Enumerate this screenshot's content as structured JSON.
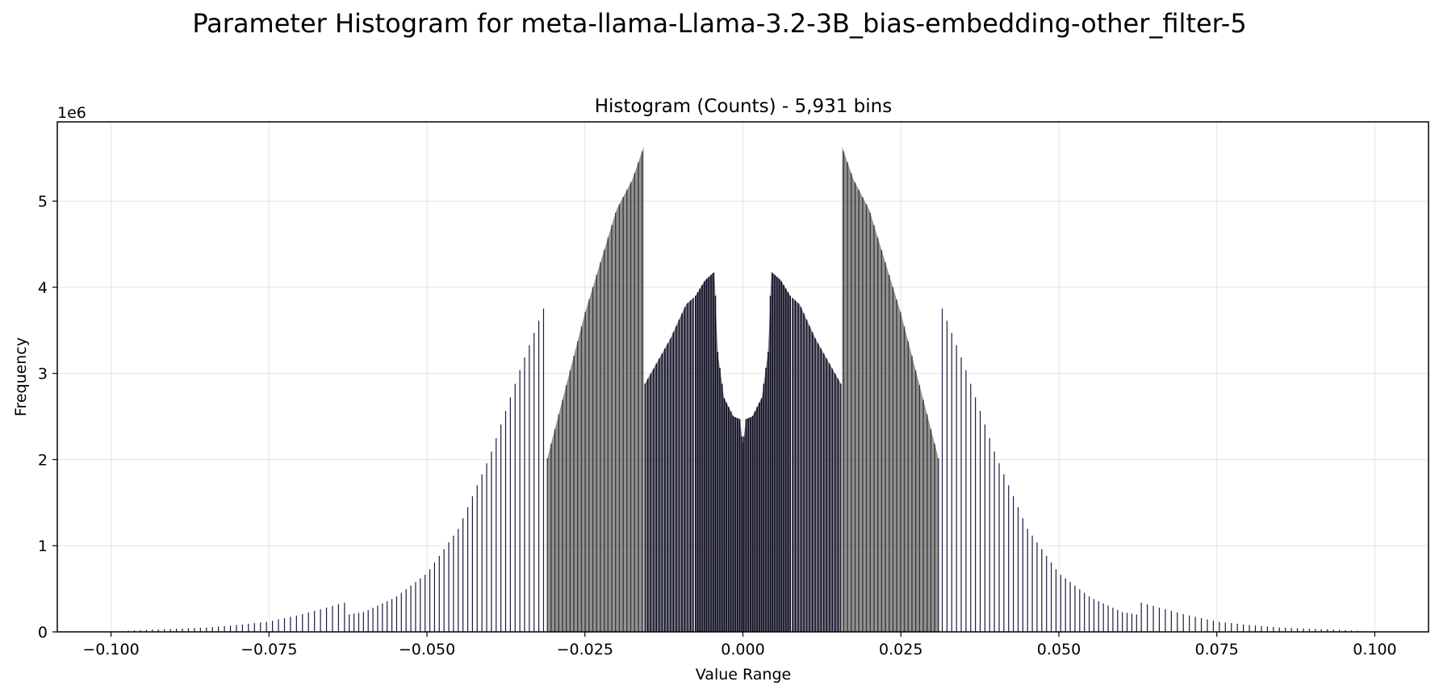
{
  "chart_data": {
    "type": "bar",
    "title": "Parameter Histogram for meta-llama-Llama-3.2-3B_bias-embedding-other_filter-5",
    "subtitle": "Histogram (Counts) - 5,931 bins",
    "xlabel": "Value Range",
    "ylabel": "Frequency",
    "y_offset_label": "1e6",
    "y_multiplier": 1000000,
    "xlim": [
      -0.1085,
      0.1085
    ],
    "ylim": [
      0,
      5.92
    ],
    "grid": true,
    "xticks": [
      -0.1,
      -0.075,
      -0.05,
      -0.025,
      0.0,
      0.025,
      0.05,
      0.075,
      0.1
    ],
    "xtick_labels": [
      "−0.100",
      "−0.075",
      "−0.050",
      "−0.025",
      "0.000",
      "0.025",
      "0.050",
      "0.075",
      "0.100"
    ],
    "yticks": [
      0,
      1,
      2,
      3,
      4,
      5
    ],
    "ytick_labels": [
      "0",
      "1",
      "2",
      "3",
      "4",
      "5"
    ],
    "bar_colors": [
      "#1c1c3c",
      "#3a3a3a",
      "#0a0a1e"
    ],
    "envelope": {
      "x": [
        0.0,
        0.0005,
        0.0015,
        0.003,
        0.004,
        0.0045,
        0.006,
        0.0075,
        0.0078,
        0.009,
        0.0115,
        0.0155,
        0.0157,
        0.0175,
        0.02,
        0.025,
        0.031,
        0.0313,
        0.035,
        0.04,
        0.045,
        0.05,
        0.055,
        0.06,
        0.0625,
        0.063,
        0.07,
        0.075,
        0.08,
        0.085,
        0.09,
        0.095,
        0.1
      ],
      "counts": [
        2.18,
        2.47,
        2.5,
        2.72,
        3.25,
        4.18,
        4.08,
        3.9,
        3.88,
        3.8,
        3.4,
        2.88,
        5.63,
        5.25,
        4.9,
        3.7,
        2.0,
        3.8,
        3.1,
        2.05,
        1.2,
        0.68,
        0.4,
        0.23,
        0.2,
        0.34,
        0.2,
        0.12,
        0.08,
        0.05,
        0.035,
        0.022,
        0.0
      ]
    }
  }
}
